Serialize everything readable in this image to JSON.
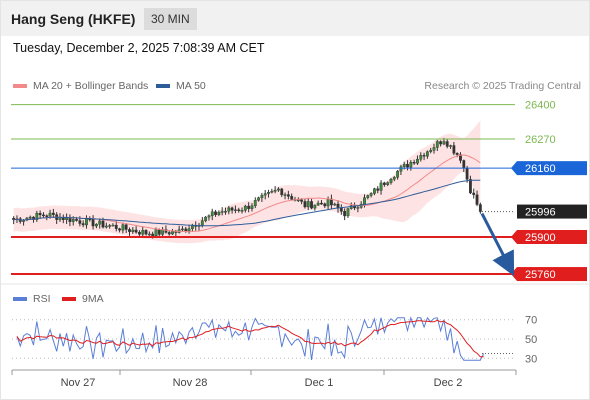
{
  "header": {
    "title": "Hang Seng (HKFE)",
    "timeframe": "30 MIN",
    "datetime": "Tuesday, December 2, 2025 7:08:39 AM CET",
    "copyright": "Research © 2025 Trading Central"
  },
  "chart_data": [
    {
      "type": "candlestick",
      "legend": [
        {
          "name": "MA 20 + Bollinger Bands",
          "color": "#f28a8a"
        },
        {
          "name": "MA 50",
          "color": "#2e5c99"
        }
      ],
      "price_range": [
        25730,
        26440
      ],
      "levels": [
        {
          "value": 26400,
          "label": "26400",
          "kind": "target",
          "color": "#7cb84f"
        },
        {
          "value": 26270,
          "label": "26270",
          "kind": "target",
          "color": "#7cb84f"
        },
        {
          "value": 26160,
          "label": "26160",
          "kind": "pivot",
          "color": "#1a66d9"
        },
        {
          "value": 25996,
          "label": "25996",
          "kind": "last-price",
          "color": "#222222"
        },
        {
          "value": 25900,
          "label": "25900",
          "kind": "support",
          "color": "#e01e1e"
        },
        {
          "value": 25760,
          "label": "25760",
          "kind": "support",
          "color": "#e01e1e"
        }
      ],
      "forecast": {
        "direction": "down",
        "from": 25996,
        "to": 25760
      },
      "x_axis_labels": [
        "Nov 27",
        "Nov 28",
        "Dec 1",
        "Dec 2"
      ]
    },
    {
      "type": "line",
      "legend": [
        {
          "name": "RSI",
          "color": "#5b7fd6"
        },
        {
          "name": "9MA",
          "color": "#e01e1e"
        }
      ],
      "y_range": [
        22,
        78
      ],
      "y_ticks": [
        70,
        50,
        30
      ]
    }
  ]
}
